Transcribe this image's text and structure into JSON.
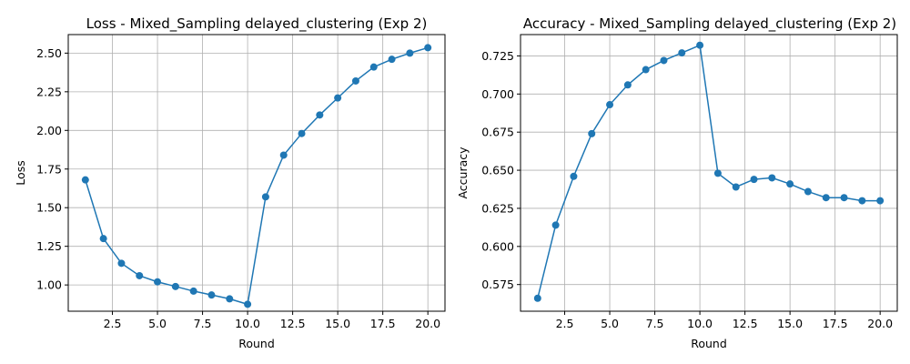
{
  "chart_data": [
    {
      "type": "line",
      "title": "Loss - Mixed_Sampling delayed_clustering (Exp 2)",
      "xlabel": "Round",
      "ylabel": "Loss",
      "xlim": [
        0.05,
        20.95
      ],
      "ylim": [
        0.83,
        2.62
      ],
      "xticks": [
        2.5,
        5.0,
        7.5,
        10.0,
        12.5,
        15.0,
        17.5,
        20.0
      ],
      "xtick_labels": [
        "2.5",
        "5.0",
        "7.5",
        "10.0",
        "12.5",
        "15.0",
        "17.5",
        "20.0"
      ],
      "yticks": [
        1.0,
        1.25,
        1.5,
        1.75,
        2.0,
        2.25,
        2.5
      ],
      "ytick_labels": [
        "1.00",
        "1.25",
        "1.50",
        "1.75",
        "2.00",
        "2.25",
        "2.50"
      ],
      "grid": true,
      "color": "#1f77b4",
      "marker": "circle",
      "series": [
        {
          "x": [
            1,
            2,
            3,
            4,
            5,
            6,
            7,
            8,
            9,
            10,
            11,
            12,
            13,
            14,
            15,
            16,
            17,
            18,
            19,
            20
          ],
          "values": [
            1.68,
            1.3,
            1.14,
            1.06,
            1.02,
            0.99,
            0.96,
            0.935,
            0.91,
            0.875,
            1.57,
            1.84,
            1.98,
            2.1,
            2.21,
            2.32,
            2.41,
            2.46,
            2.5,
            2.535
          ]
        }
      ]
    },
    {
      "type": "line",
      "title": "Accuracy - Mixed_Sampling delayed_clustering (Exp 2)",
      "xlabel": "Round",
      "ylabel": "Accuracy",
      "xlim": [
        0.05,
        20.95
      ],
      "ylim": [
        0.5575,
        0.739
      ],
      "xticks": [
        2.5,
        5.0,
        7.5,
        10.0,
        12.5,
        15.0,
        17.5,
        20.0
      ],
      "xtick_labels": [
        "2.5",
        "5.0",
        "7.5",
        "10.0",
        "12.5",
        "15.0",
        "17.5",
        "20.0"
      ],
      "yticks": [
        0.575,
        0.6,
        0.625,
        0.65,
        0.675,
        0.7,
        0.725
      ],
      "ytick_labels": [
        "0.575",
        "0.600",
        "0.625",
        "0.650",
        "0.675",
        "0.700",
        "0.725"
      ],
      "grid": true,
      "color": "#1f77b4",
      "marker": "circle",
      "series": [
        {
          "x": [
            1,
            2,
            3,
            4,
            5,
            6,
            7,
            8,
            9,
            10,
            11,
            12,
            13,
            14,
            15,
            16,
            17,
            18,
            19,
            20
          ],
          "values": [
            0.566,
            0.614,
            0.646,
            0.674,
            0.693,
            0.706,
            0.716,
            0.722,
            0.727,
            0.732,
            0.648,
            0.639,
            0.644,
            0.645,
            0.641,
            0.636,
            0.632,
            0.632,
            0.63,
            0.63
          ]
        }
      ]
    }
  ]
}
